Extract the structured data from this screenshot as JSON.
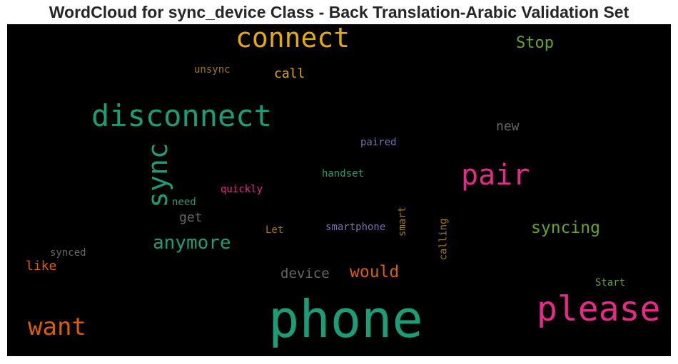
{
  "title": "WordCloud for sync_device Class - Back Translation-Arabic Validation Set",
  "words": [
    {
      "text": "phone",
      "color": "#1b9e77"
    },
    {
      "text": "please",
      "color": "#e7298a"
    },
    {
      "text": "disconnect",
      "color": "#1b9e77"
    },
    {
      "text": "connect",
      "color": "#e6ab02"
    },
    {
      "text": "want",
      "color": "#d95f02"
    },
    {
      "text": "pair",
      "color": "#e7298a"
    },
    {
      "text": "sync",
      "color": "#1b9e77"
    },
    {
      "text": "anymore",
      "color": "#1b9e77"
    },
    {
      "text": "syncing",
      "color": "#66a61e"
    },
    {
      "text": "Stop",
      "color": "#66a61e"
    },
    {
      "text": "would",
      "color": "#d95f02"
    },
    {
      "text": "device",
      "color": "#666666"
    },
    {
      "text": "call",
      "color": "#e6ab02"
    },
    {
      "text": "new",
      "color": "#666666"
    },
    {
      "text": "get",
      "color": "#666666"
    },
    {
      "text": "like",
      "color": "#d95f02"
    },
    {
      "text": "unsync",
      "color": "#a6761d"
    },
    {
      "text": "paired",
      "color": "#7570b3"
    },
    {
      "text": "handset",
      "color": "#1b9e77"
    },
    {
      "text": "quickly",
      "color": "#e7298a"
    },
    {
      "text": "need",
      "color": "#1b9e77"
    },
    {
      "text": "smartphone",
      "color": "#7570b3"
    },
    {
      "text": "Let",
      "color": "#a6761d"
    },
    {
      "text": "smart",
      "color": "#a6761d"
    },
    {
      "text": "calling",
      "color": "#a6761d"
    },
    {
      "text": "synced",
      "color": "#666666"
    },
    {
      "text": "Start",
      "color": "#66a61e"
    }
  ]
}
